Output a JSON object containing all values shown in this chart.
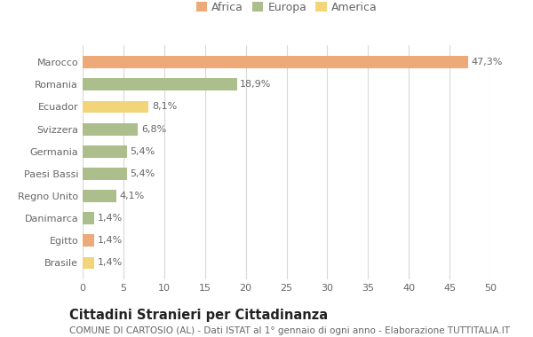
{
  "categories": [
    "Marocco",
    "Romania",
    "Ecuador",
    "Svizzera",
    "Germania",
    "Paesi Bassi",
    "Regno Unito",
    "Danimarca",
    "Egitto",
    "Brasile"
  ],
  "values": [
    47.3,
    18.9,
    8.1,
    6.8,
    5.4,
    5.4,
    4.1,
    1.4,
    1.4,
    1.4
  ],
  "labels": [
    "47,3%",
    "18,9%",
    "8,1%",
    "6,8%",
    "5,4%",
    "5,4%",
    "4,1%",
    "1,4%",
    "1,4%",
    "1,4%"
  ],
  "colors": [
    "#EDAA78",
    "#ABBE8C",
    "#F2D479",
    "#ABBE8C",
    "#ABBE8C",
    "#ABBE8C",
    "#ABBE8C",
    "#ABBE8C",
    "#EDAA78",
    "#F2D479"
  ],
  "legend_labels": [
    "Africa",
    "Europa",
    "America"
  ],
  "legend_colors": [
    "#EDAA78",
    "#ABBE8C",
    "#F2D479"
  ],
  "title": "Cittadini Stranieri per Cittadinanza",
  "subtitle": "COMUNE DI CARTOSIO (AL) - Dati ISTAT al 1° gennaio di ogni anno - Elaborazione TUTTITALIA.IT",
  "xlim": [
    0,
    50
  ],
  "xticks": [
    0,
    5,
    10,
    15,
    20,
    25,
    30,
    35,
    40,
    45,
    50
  ],
  "bg_color": "#ffffff",
  "grid_color": "#d8d8d8",
  "bar_height": 0.55,
  "label_fontsize": 8,
  "tick_fontsize": 8,
  "title_fontsize": 10.5,
  "subtitle_fontsize": 7.5
}
